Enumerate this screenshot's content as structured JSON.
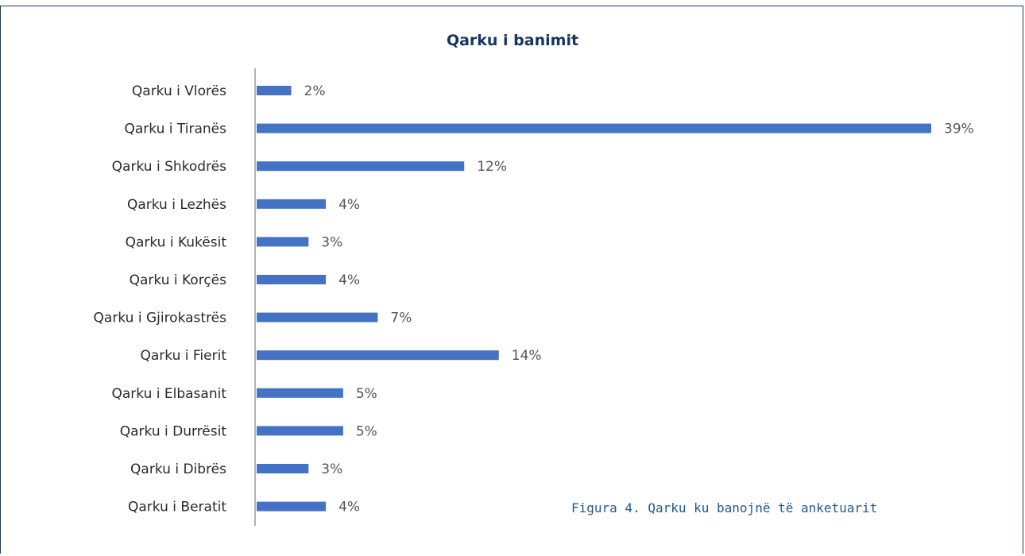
{
  "chart_data": {
    "type": "bar",
    "orientation": "horizontal",
    "title": "Qarku i banimit",
    "categories": [
      "Qarku i Vlorës",
      "Qarku i Tiranës",
      "Qarku i Shkodrës",
      "Qarku i Lezhës",
      "Qarku i Kukësit",
      "Qarku i Korçës",
      "Qarku i Gjirokastrës",
      "Qarku i Fierit",
      "Qarku i Elbasanit",
      "Qarku i Durrësit",
      "Qarku i Dibrës",
      "Qarku i Beratit"
    ],
    "values": [
      2,
      39,
      12,
      4,
      3,
      4,
      7,
      14,
      5,
      5,
      3,
      4
    ],
    "value_labels": [
      "2%",
      "39%",
      "12%",
      "4%",
      "3%",
      "4%",
      "7%",
      "14%",
      "5%",
      "5%",
      "3%",
      "4%"
    ],
    "value_unit": "%",
    "grid": false,
    "bar_color": "#4472c4"
  },
  "caption": "Figura 4. Qarku ku banojnë të anketuarit",
  "colors": {
    "title": "#14355e",
    "caption": "#1f5a8c",
    "frame": "#1f3a5c"
  }
}
